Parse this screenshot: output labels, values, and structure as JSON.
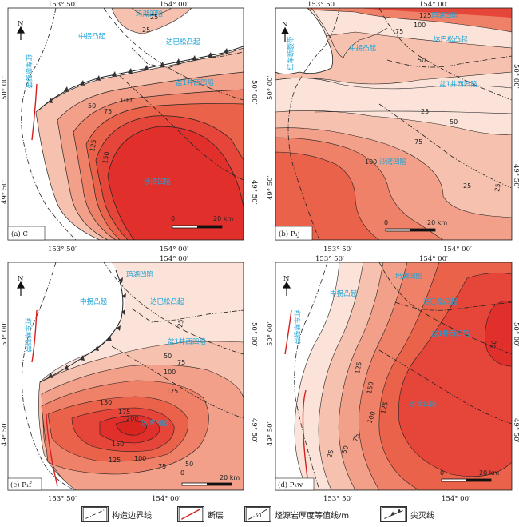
{
  "coords": {
    "lon_left": "153° 50′",
    "lon_right": "154° 00′",
    "lat_top": "50° 00′",
    "lat_bottom": "49° 50′"
  },
  "regions": {
    "mahu": "玛湖凹陷",
    "zhongguai": "中拐凸起",
    "dabasong": "达巴松凸起",
    "pen1": "盆1井西凹陷",
    "shawan": "沙湾凹陷",
    "hongche": "红车断裂带"
  },
  "north": "N",
  "panels": [
    {
      "id": "a",
      "label": "(a) C",
      "scale": "20 km",
      "scale_zero": "0",
      "contours": [
        "25",
        "25",
        "50",
        "75",
        "100",
        "125",
        "150"
      ]
    },
    {
      "id": "b",
      "label": "(b) P₁j",
      "scale": "20 km",
      "scale_zero": "0",
      "contours": [
        "125",
        "100",
        "75",
        "50",
        "25",
        "25",
        "50",
        "75",
        "100",
        "25"
      ]
    },
    {
      "id": "c",
      "label": "(c) P₁f",
      "scale": "20 km",
      "scale_zero": "0",
      "contours": [
        "25",
        "50",
        "75",
        "100",
        "125",
        "150",
        "175",
        "200",
        "150",
        "125",
        "100",
        "75",
        "50"
      ]
    },
    {
      "id": "d",
      "label": "(d) P₂w",
      "scale": "20 km",
      "scale_zero": "0",
      "contours": [
        "25",
        "50",
        "75",
        "100",
        "125",
        "150",
        "125",
        "50"
      ]
    }
  ],
  "legend": {
    "boundary": "构造边界线",
    "fault": "断层",
    "isopach": "烃源岩厚度等值线/m",
    "isopach_sample": "50",
    "pinchout": "尖灭线"
  },
  "colors": {
    "c0": "#fbe3d9",
    "c1": "#f6c1ae",
    "c2": "#f2a08a",
    "c3": "#ee8167",
    "c4": "#ea6249",
    "c5": "#e6453a",
    "c6": "#e1302c",
    "fault": "#d42020",
    "region_text": "#1aa3d8"
  }
}
